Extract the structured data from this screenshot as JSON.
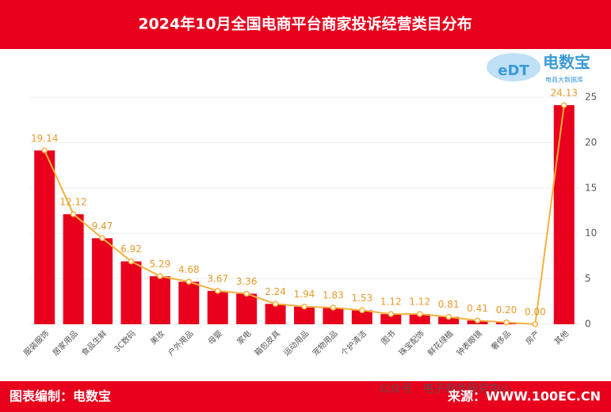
{
  "header": {
    "title": "2024年10月全国电商平台商家投诉经营类目分布"
  },
  "logo": {
    "mark": "eDT",
    "name": "电数宝",
    "tagline": "电商大数据库"
  },
  "chart_data": {
    "type": "bar",
    "categories": [
      "服装服饰",
      "居家用品",
      "食品生鲜",
      "3C数码",
      "美妆",
      "户外用品",
      "母婴",
      "家电",
      "箱包皮具",
      "运动用品",
      "宠物用品",
      "个护清洁",
      "图书",
      "珠宝配饰",
      "鲜花绿植",
      "钟表眼镜",
      "奢侈品",
      "房产",
      "其他"
    ],
    "values": [
      19.14,
      12.12,
      9.47,
      6.92,
      5.29,
      4.68,
      3.67,
      3.36,
      2.24,
      1.94,
      1.83,
      1.53,
      1.12,
      1.12,
      0.81,
      0.41,
      0.2,
      0,
      24.13
    ],
    "value_labels": [
      "19.14",
      "12.12",
      "9.47",
      "6.92",
      "5.29",
      "4.68",
      "3.67",
      "3.36",
      "2.24",
      "1.94",
      "1.83",
      "1.53",
      "1.12",
      "1.12",
      "0.81",
      "0.41",
      "0.20",
      "0.00",
      "24.13"
    ],
    "color": "#e8001c",
    "line_color": "#f5b03e",
    "ylim": [
      0,
      25
    ],
    "yticks": [
      0,
      5,
      10,
      15,
      20,
      25
    ],
    "grid": true
  },
  "footer": {
    "left": "图表编制：电数宝",
    "watermark": "公众号 · 电子商务研究中心",
    "right": "来源：WWW.100EC.CN"
  }
}
